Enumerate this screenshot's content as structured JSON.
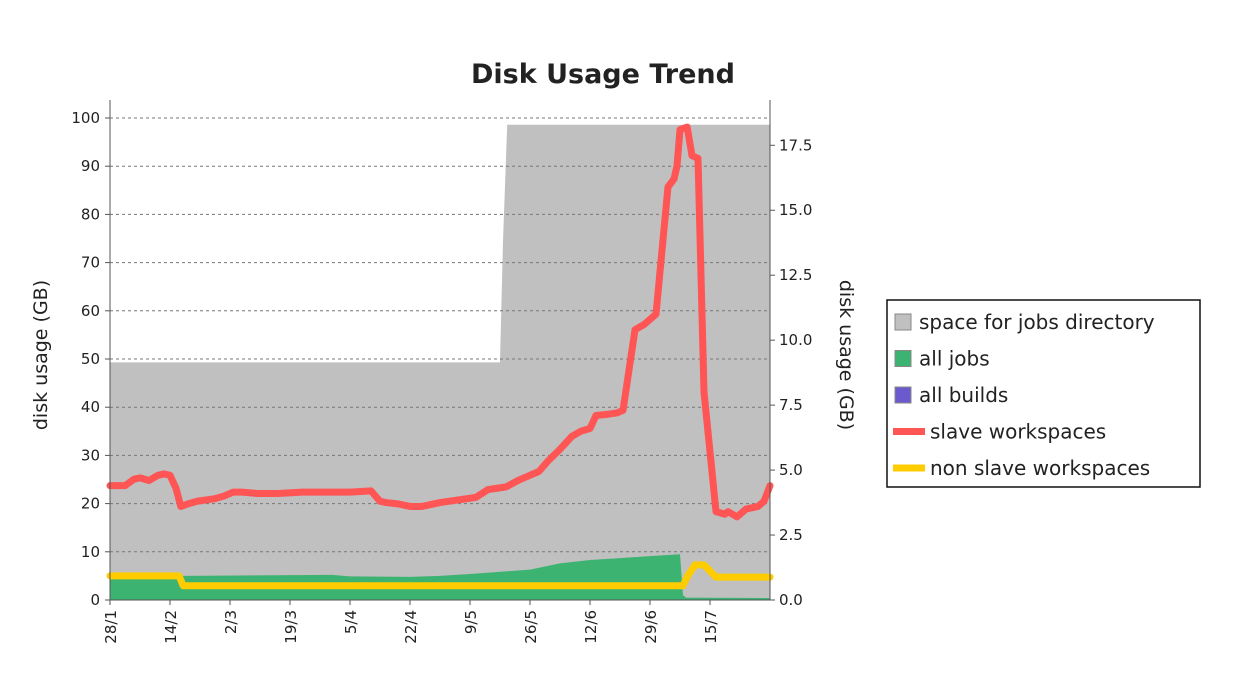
{
  "chart_data": {
    "type": "area",
    "title": "Disk Usage Trend",
    "ylabel": "disk usage (GB)",
    "y2label": "disk usage (GB)",
    "ylim": [
      0,
      100
    ],
    "y2lim": [
      0,
      18.55
    ],
    "yticks": [
      "0",
      "10",
      "20",
      "30",
      "40",
      "50",
      "60",
      "70",
      "80",
      "90",
      "100"
    ],
    "y2ticks": [
      "0.0",
      "2.5",
      "5.0",
      "7.5",
      "10.0",
      "12.5",
      "15.0",
      "17.5"
    ],
    "y2tick_values": [
      0,
      2.5,
      5,
      7.5,
      10,
      12.5,
      15,
      17.5
    ],
    "grid": "horizontal dashed, left axis",
    "legend_position": "right",
    "categories": [
      "28/1",
      "14/2",
      "2/3",
      "19/3",
      "5/4",
      "22/4",
      "9/5",
      "26/5",
      "12/6",
      "29/6",
      "15/7"
    ],
    "x_index_range": [
      0,
      11
    ],
    "series": [
      {
        "name": "space for jobs directory",
        "kind": "area",
        "color": "#c0c0c0",
        "axis": "left",
        "x": [
          0,
          6.5,
          6.55,
          6.62,
          11
        ],
        "values": [
          49.3,
          49.3,
          74.5,
          98.6,
          98.6
        ]
      },
      {
        "name": "all jobs",
        "kind": "area",
        "color": "#3cb371",
        "axis": "left",
        "x": [
          0,
          1,
          1.2,
          3.7,
          4,
          5,
          5.5,
          6,
          7,
          7.5,
          8,
          8.5,
          9,
          9.5,
          9.55,
          9.6,
          11
        ],
        "values": [
          5.5,
          5.6,
          5.0,
          5.2,
          4.9,
          4.8,
          5.0,
          5.4,
          6.3,
          7.6,
          8.3,
          8.7,
          9.1,
          9.5,
          1.0,
          0.5,
          0.4
        ]
      },
      {
        "name": "all builds",
        "kind": "area",
        "color": "#6a5acd",
        "axis": "left",
        "x": [
          0,
          11
        ],
        "values": [
          0.05,
          0.05
        ]
      },
      {
        "name": "slave workspaces",
        "kind": "line",
        "color": "#ff5555",
        "axis": "right",
        "x": [
          0,
          0.25,
          0.4,
          0.5,
          0.65,
          0.8,
          0.9,
          1.0,
          1.1,
          1.18,
          1.3,
          1.45,
          1.6,
          1.75,
          1.9,
          2.05,
          2.2,
          2.45,
          2.8,
          3.2,
          3.6,
          4.0,
          4.35,
          4.5,
          4.6,
          4.8,
          5.0,
          5.2,
          5.5,
          5.8,
          6.1,
          6.3,
          6.45,
          6.6,
          6.8,
          6.95,
          7.15,
          7.3,
          7.5,
          7.7,
          7.85,
          8.0,
          8.1,
          8.3,
          8.45,
          8.55,
          8.75,
          8.9,
          9.0,
          9.1,
          9.3,
          9.4,
          9.45,
          9.5,
          9.62,
          9.7,
          9.8,
          9.9,
          10.1,
          10.25,
          10.3,
          10.45,
          10.6,
          10.8,
          10.9,
          11.0
        ],
        "values": [
          4.4,
          4.4,
          4.65,
          4.7,
          4.6,
          4.8,
          4.85,
          4.8,
          4.3,
          3.6,
          3.7,
          3.8,
          3.85,
          3.9,
          4.0,
          4.15,
          4.15,
          4.1,
          4.1,
          4.15,
          4.15,
          4.15,
          4.2,
          3.8,
          3.75,
          3.7,
          3.6,
          3.6,
          3.75,
          3.85,
          3.95,
          4.25,
          4.3,
          4.35,
          4.6,
          4.75,
          4.95,
          5.35,
          5.8,
          6.3,
          6.5,
          6.6,
          7.1,
          7.15,
          7.2,
          7.3,
          10.4,
          10.6,
          10.8,
          11.0,
          15.9,
          16.2,
          16.7,
          18.1,
          18.2,
          17.1,
          17.0,
          8.0,
          3.4,
          3.3,
          3.4,
          3.2,
          3.5,
          3.6,
          3.8,
          4.4
        ]
      },
      {
        "name": "non slave workspaces",
        "kind": "line",
        "color": "#ffcc00",
        "axis": "right",
        "x": [
          0,
          1.15,
          1.22,
          9.55,
          9.62,
          9.75,
          9.9,
          10.1,
          11
        ],
        "values": [
          0.93,
          0.93,
          0.55,
          0.55,
          0.9,
          1.35,
          1.35,
          0.88,
          0.88
        ]
      }
    ]
  }
}
